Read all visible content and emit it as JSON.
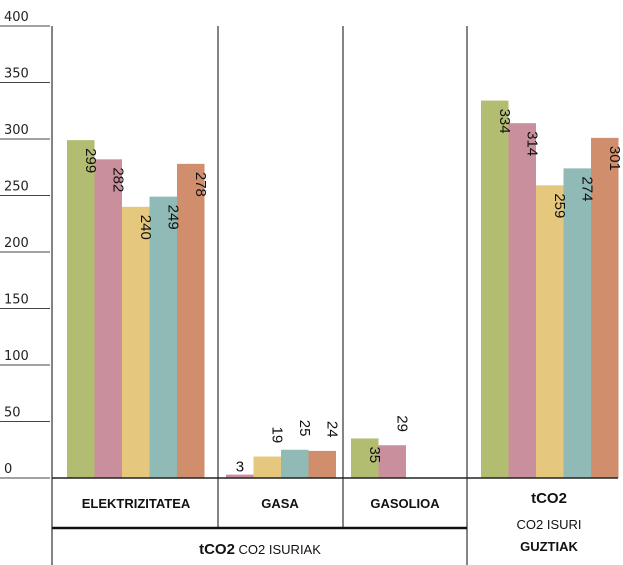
{
  "chart_data": {
    "type": "bar",
    "ylim": [
      0,
      400
    ],
    "yticks": [
      0,
      50,
      100,
      150,
      200,
      250,
      300,
      350,
      400
    ],
    "colors": [
      "#b3bd72",
      "#c98f9c",
      "#e6c77e",
      "#8fbab6",
      "#d18e6c"
    ],
    "groups": [
      {
        "label": "ELEKTRIZITATEA",
        "values": [
          299,
          282,
          240,
          249,
          278
        ]
      },
      {
        "label": "GASA",
        "values": [
          3,
          19,
          25,
          24
        ]
      },
      {
        "label": "GASOLIOA",
        "values": [
          35,
          29
        ]
      },
      {
        "label": "tCO2",
        "sublabel_1": "CO2 ISURI",
        "sublabel_2": "GUZTIAK",
        "values": [
          334,
          314,
          259,
          274,
          301
        ]
      }
    ],
    "footer": {
      "bold": "tCO2",
      "text": "CO2 ISURIAK"
    }
  }
}
